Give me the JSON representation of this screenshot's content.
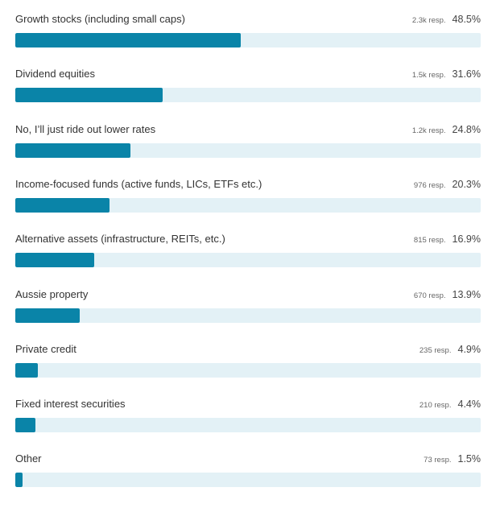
{
  "colors": {
    "bar_fill": "#0a84a8",
    "bar_track": "#e3f1f6"
  },
  "chart_data": {
    "type": "bar",
    "orientation": "horizontal",
    "xlim": [
      0,
      100
    ],
    "grid": false,
    "categories": [
      "Growth stocks (including small caps)",
      "Dividend equities",
      "No, I’ll just ride out lower rates",
      "Income-focused funds (active funds, LICs, ETFs etc.)",
      "Alternative assets (infrastructure, REITs, etc.)",
      "Aussie property",
      "Private credit",
      "Fixed interest securities",
      "Other"
    ],
    "values": [
      48.5,
      31.6,
      24.8,
      20.3,
      16.9,
      13.9,
      4.9,
      4.4,
      1.5
    ],
    "value_labels": [
      "48.5%",
      "31.6%",
      "24.8%",
      "20.3%",
      "16.9%",
      "13.9%",
      "4.9%",
      "4.4%",
      "1.5%"
    ],
    "responses": [
      "2.3k resp.",
      "1.5k resp.",
      "1.2k resp.",
      "976 resp.",
      "815 resp.",
      "670 resp.",
      "235 resp.",
      "210 resp.",
      "73 resp."
    ]
  }
}
